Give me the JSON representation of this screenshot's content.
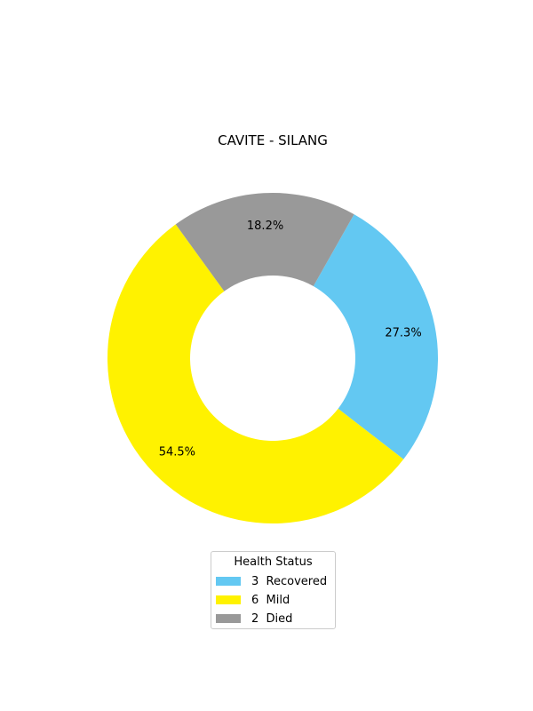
{
  "chart_data": {
    "type": "pie",
    "style": "donut",
    "title": "CAVITE - SILANG",
    "legend_title": "Health Status",
    "legend_placement": "bottom-center",
    "slices": [
      {
        "label": "Recovered",
        "count": 3,
        "legend": "3  Recovered",
        "percent_label": "27.3%",
        "color": "#63c8f2"
      },
      {
        "label": "Mild",
        "count": 6,
        "legend": "6  Mild",
        "percent_label": "54.5%",
        "color": "#fff200"
      },
      {
        "label": "Died",
        "count": 2,
        "legend": "2  Died",
        "percent_label": "18.2%",
        "color": "#999999"
      }
    ]
  }
}
